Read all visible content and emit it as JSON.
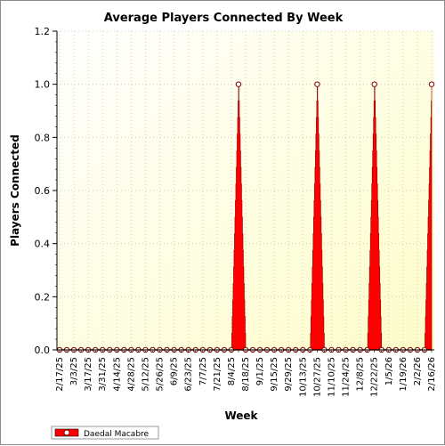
{
  "chart_data": {
    "type": "area",
    "title": "Average Players Connected By Week",
    "xlabel": "Week",
    "ylabel": "Players Connected",
    "ylim": [
      0,
      1.2
    ],
    "yticks": [
      "0.0",
      "0.2",
      "0.4",
      "0.6",
      "0.8",
      "1.0",
      "1.2"
    ],
    "grid": true,
    "legend_position": "bottom-left",
    "x_labels": [
      "2/17/25",
      "3/3/25",
      "3/17/25",
      "3/31/25",
      "4/14/25",
      "4/28/25",
      "5/12/25",
      "5/26/25",
      "6/9/25",
      "6/23/25",
      "7/7/25",
      "7/21/25",
      "8/4/25",
      "8/18/25",
      "9/1/25",
      "9/15/25",
      "9/29/25",
      "10/13/25",
      "10/27/25",
      "11/10/25",
      "11/24/25",
      "12/8/25",
      "12/22/25",
      "1/5/26",
      "1/19/26",
      "2/2/26",
      "2/16/26"
    ],
    "x": [
      "2/17/25",
      "2/24/25",
      "3/3/25",
      "3/10/25",
      "3/17/25",
      "3/24/25",
      "3/31/25",
      "4/7/25",
      "4/14/25",
      "4/21/25",
      "4/28/25",
      "5/5/25",
      "5/12/25",
      "5/19/25",
      "5/26/25",
      "6/2/25",
      "6/9/25",
      "6/16/25",
      "6/23/25",
      "6/30/25",
      "7/7/25",
      "7/14/25",
      "7/21/25",
      "7/28/25",
      "8/4/25",
      "8/11/25",
      "8/18/25",
      "8/25/25",
      "9/1/25",
      "9/8/25",
      "9/15/25",
      "9/22/25",
      "9/29/25",
      "10/6/25",
      "10/13/25",
      "10/20/25",
      "10/27/25",
      "11/3/25",
      "11/10/25",
      "11/17/25",
      "11/24/25",
      "12/1/25",
      "12/8/25",
      "12/15/25",
      "12/22/25",
      "12/29/25",
      "1/5/26",
      "1/12/26",
      "1/19/26",
      "1/26/26",
      "2/2/26",
      "2/9/26",
      "2/16/26"
    ],
    "series": [
      {
        "name": "Daedal Macabre",
        "color": "#ff0000",
        "values": [
          0,
          0,
          0,
          0,
          0,
          0,
          0,
          0,
          0,
          0,
          0,
          0,
          0,
          0,
          0,
          0,
          0,
          0,
          0,
          0,
          0,
          0,
          0,
          0,
          0,
          1,
          0,
          0,
          0,
          0,
          0,
          0,
          0,
          0,
          0,
          0,
          1,
          0,
          0,
          0,
          0,
          0,
          0,
          0,
          1,
          0,
          0,
          0,
          0,
          0,
          0,
          0,
          1
        ]
      }
    ]
  }
}
